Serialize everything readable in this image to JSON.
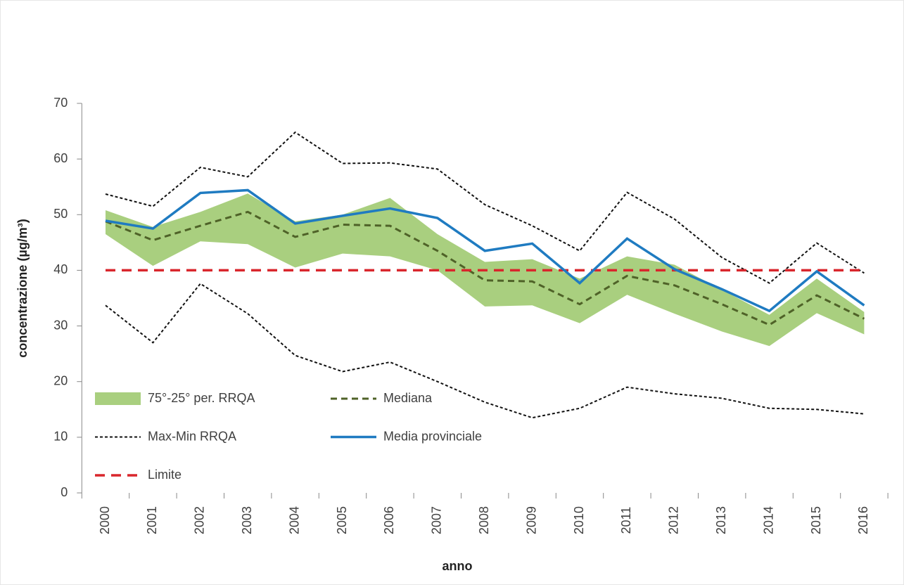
{
  "chart_data": {
    "type": "line",
    "x_label": "anno",
    "y_label": "concentrazione (µg/m³)",
    "categories": [
      "2000",
      "2001",
      "2002",
      "2003",
      "2004",
      "2005",
      "2006",
      "2007",
      "2008",
      "2009",
      "2010",
      "2011",
      "2012",
      "2013",
      "2014",
      "2015",
      "2016"
    ],
    "ylim": [
      0,
      70
    ],
    "yticks": [
      0,
      10,
      20,
      30,
      40,
      50,
      60,
      70
    ],
    "series": [
      {
        "name": "75°-25° per. RRQA",
        "kind": "band",
        "color": "#a9cf7f",
        "values": [
          50.8,
          47.8,
          50.5,
          53.8,
          48.8,
          50,
          53,
          46.5,
          41.5,
          42,
          38.5,
          42.5,
          41,
          36.5,
          32,
          38.5,
          32.5
        ],
        "lower_values": [
          46.5,
          40.8,
          45.2,
          44.7,
          40.5,
          43,
          42.5,
          40,
          33.5,
          33.7,
          30.5,
          35.6,
          32.2,
          29,
          26.4,
          32.3,
          28.5
        ]
      },
      {
        "name": "Mediana",
        "kind": "dashed",
        "color": "#4f6228",
        "values": [
          48.8,
          45.4,
          48,
          50.5,
          46,
          48.2,
          48,
          43.5,
          38.2,
          38,
          33.9,
          39,
          37.3,
          33.9,
          30.2,
          35.5,
          31.3
        ]
      },
      {
        "name": "Max-Min RRQA",
        "kind": "dotted",
        "color": "#111111",
        "values": [
          53.7,
          51.5,
          58.5,
          56.8,
          64.8,
          59.2,
          59.3,
          58.2,
          51.8,
          48,
          43.5,
          54,
          49.2,
          42.3,
          37.7,
          44.9,
          39.5
        ],
        "lower_values": [
          33.7,
          27,
          37.6,
          32.2,
          24.7,
          21.8,
          23.5,
          20,
          16.3,
          13.5,
          15.2,
          19,
          17.8,
          17,
          15.2,
          15,
          14.2
        ]
      },
      {
        "name": "Media provinciale",
        "kind": "solid",
        "color": "#1f7bc1",
        "values": [
          48.9,
          47.5,
          53.9,
          54.4,
          48.4,
          49.8,
          51.1,
          49.4,
          43.5,
          44.8,
          37.7,
          45.7,
          40.2,
          36.6,
          32.7,
          39.8,
          33.7
        ]
      },
      {
        "name": "Limite",
        "kind": "limit",
        "color": "#d9262c",
        "values": [
          40,
          40,
          40,
          40,
          40,
          40,
          40,
          40,
          40,
          40,
          40,
          40,
          40,
          40,
          40,
          40,
          40
        ]
      }
    ]
  }
}
